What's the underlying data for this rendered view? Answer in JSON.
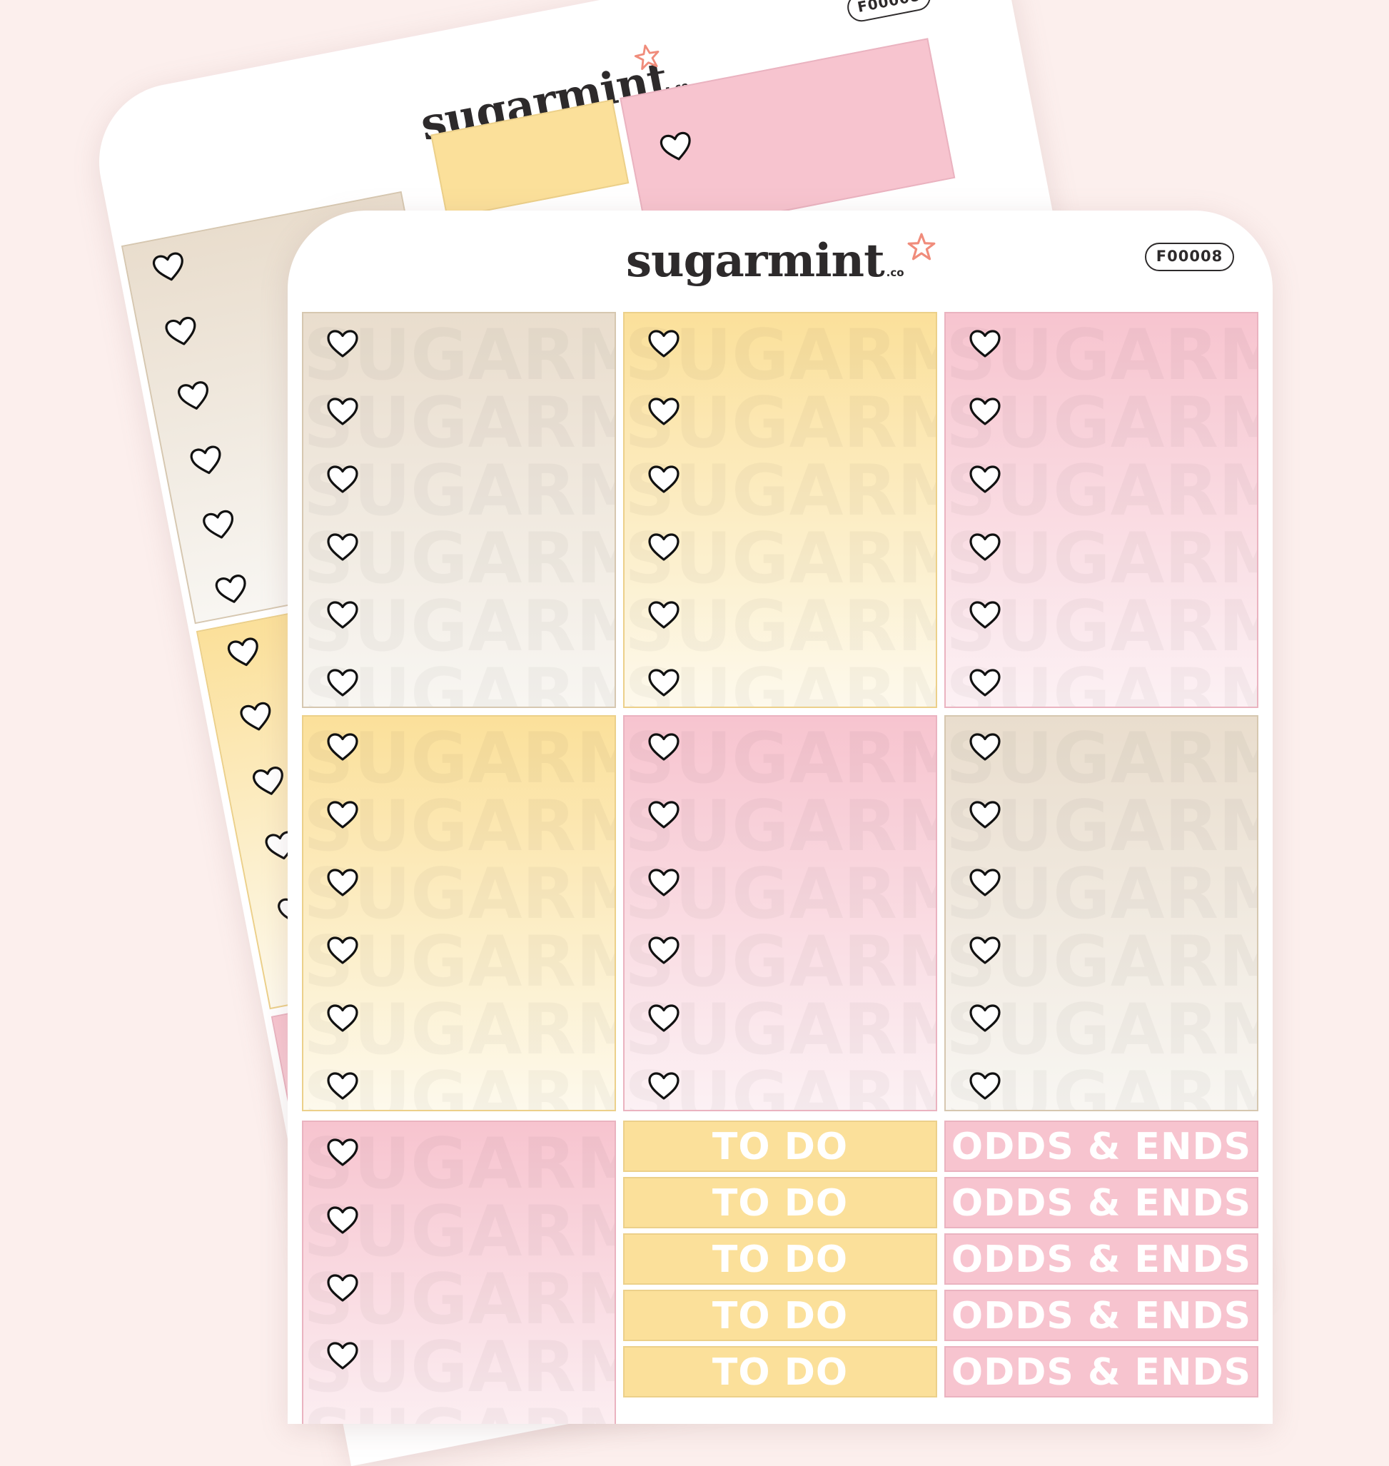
{
  "brand": {
    "name": "sugarmint",
    "suffix": ".co",
    "code": "F00008"
  },
  "icons": {
    "checkbox": "heart-outline-icon",
    "logo_mark": "star-icon"
  },
  "watermark": "SUGARMINT",
  "labels": {
    "todo": "TO DO",
    "odds": "ODDS & ENDS"
  },
  "colors": {
    "background": "#fcefed",
    "beige_top": "#e9ddcd",
    "beige_bottom": "#f8f6f2",
    "yellow_top": "#fbe09a",
    "yellow_bottom": "#fdf9ec",
    "pink_top": "#f7c4cf",
    "pink_bottom": "#fcf1f4",
    "star": "#f08c7b"
  }
}
